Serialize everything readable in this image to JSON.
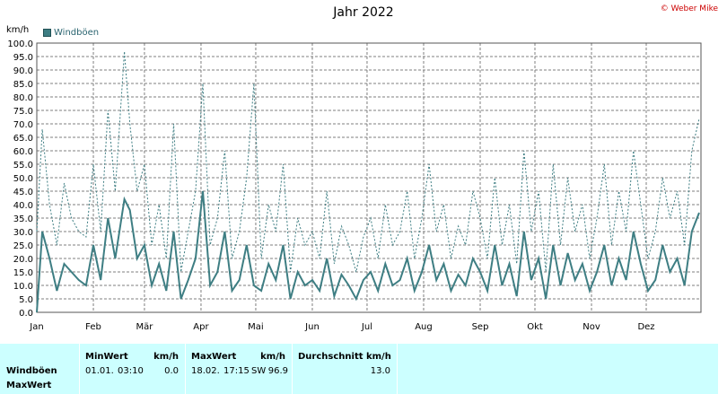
{
  "chart_data": {
    "type": "line",
    "title": "Jahr 2022",
    "copyright": "© Weber Mike",
    "y_unit": "km/h",
    "ylim": [
      0,
      100
    ],
    "y_ticks": [
      "0.0",
      "5.0",
      "10.0",
      "15.0",
      "20.0",
      "25.0",
      "30.0",
      "35.0",
      "40.0",
      "45.0",
      "50.0",
      "55.0",
      "60.0",
      "65.0",
      "70.0",
      "75.0",
      "80.0",
      "85.0",
      "90.0",
      "95.0",
      "100.0"
    ],
    "x_ticks": [
      "Jan",
      "Feb",
      "Mär",
      "Apr",
      "Mai",
      "Jun",
      "Jul",
      "Aug",
      "Sep",
      "Okt",
      "Nov",
      "Dez"
    ],
    "x_tick_days": [
      1,
      32,
      60,
      91,
      121,
      152,
      182,
      213,
      244,
      274,
      305,
      335
    ],
    "xlim_days": [
      1,
      365
    ],
    "legend": [
      {
        "name": "Windböen",
        "color": "#3e7e83"
      }
    ],
    "grid": true,
    "series": [
      {
        "name": "Windböen",
        "style": "solid",
        "color": "#3e7e83",
        "x_days": [
          1,
          4,
          8,
          12,
          16,
          20,
          24,
          28,
          32,
          36,
          40,
          44,
          49,
          52,
          56,
          60,
          64,
          68,
          72,
          76,
          80,
          84,
          88,
          92,
          96,
          100,
          104,
          108,
          112,
          116,
          120,
          124,
          128,
          132,
          136,
          140,
          144,
          148,
          152,
          156,
          160,
          164,
          168,
          172,
          176,
          180,
          184,
          188,
          192,
          196,
          200,
          204,
          208,
          212,
          216,
          220,
          224,
          228,
          232,
          236,
          240,
          244,
          248,
          252,
          256,
          260,
          264,
          268,
          272,
          276,
          280,
          284,
          288,
          292,
          296,
          300,
          304,
          308,
          312,
          316,
          320,
          324,
          328,
          332,
          336,
          340,
          344,
          348,
          352,
          356,
          360,
          364
        ],
        "values": [
          0,
          30,
          20,
          8,
          18,
          15,
          12,
          10,
          25,
          12,
          35,
          20,
          42,
          38,
          20,
          25,
          10,
          18,
          8,
          30,
          5,
          12,
          20,
          45,
          10,
          15,
          30,
          8,
          12,
          25,
          10,
          8,
          18,
          12,
          25,
          5,
          15,
          10,
          12,
          8,
          20,
          6,
          14,
          10,
          5,
          12,
          15,
          8,
          18,
          10,
          12,
          20,
          8,
          15,
          25,
          12,
          18,
          8,
          14,
          10,
          20,
          15,
          8,
          25,
          10,
          18,
          6,
          30,
          12,
          20,
          5,
          25,
          10,
          22,
          12,
          18,
          8,
          15,
          25,
          10,
          20,
          12,
          30,
          18,
          8,
          12,
          25,
          15,
          20,
          10,
          30,
          37
        ]
      },
      {
        "name": "MaxWert",
        "style": "dashed",
        "color": "#3e7e83",
        "x_days": [
          1,
          4,
          8,
          12,
          16,
          20,
          24,
          28,
          32,
          36,
          40,
          44,
          49,
          52,
          56,
          60,
          64,
          68,
          72,
          76,
          80,
          84,
          88,
          92,
          96,
          100,
          104,
          108,
          112,
          116,
          120,
          124,
          128,
          132,
          136,
          140,
          144,
          148,
          152,
          156,
          160,
          164,
          168,
          172,
          176,
          180,
          184,
          188,
          192,
          196,
          200,
          204,
          208,
          212,
          216,
          220,
          224,
          228,
          232,
          236,
          240,
          244,
          248,
          252,
          256,
          260,
          264,
          268,
          272,
          276,
          280,
          284,
          288,
          292,
          296,
          300,
          304,
          308,
          312,
          316,
          320,
          324,
          328,
          332,
          336,
          340,
          344,
          348,
          352,
          356,
          360,
          364
        ],
        "values": [
          30,
          68,
          40,
          25,
          48,
          35,
          30,
          28,
          55,
          30,
          75,
          45,
          96.9,
          70,
          45,
          55,
          25,
          40,
          20,
          70,
          15,
          30,
          45,
          85,
          25,
          35,
          60,
          20,
          30,
          50,
          85,
          20,
          40,
          30,
          55,
          15,
          35,
          25,
          30,
          20,
          45,
          18,
          32,
          25,
          15,
          28,
          35,
          20,
          40,
          25,
          30,
          45,
          20,
          35,
          55,
          30,
          40,
          20,
          32,
          25,
          45,
          35,
          20,
          50,
          25,
          40,
          18,
          60,
          30,
          45,
          15,
          55,
          25,
          50,
          30,
          40,
          20,
          35,
          55,
          25,
          45,
          30,
          60,
          40,
          20,
          30,
          50,
          35,
          45,
          25,
          60,
          72
        ]
      }
    ]
  },
  "stats": {
    "row_labels": [
      "Windböen",
      "MaxWert"
    ],
    "min": {
      "label": "MinWert",
      "unit": "km/h",
      "date": "01.01.",
      "time": "03:10",
      "value": "0.0"
    },
    "max": {
      "label": "MaxWert",
      "unit": "km/h",
      "date": "18.02.",
      "time": "17:15",
      "dir": "SW",
      "value": "96.9"
    },
    "avg": {
      "label": "Durchschnitt km/h",
      "value": "13.0"
    }
  }
}
